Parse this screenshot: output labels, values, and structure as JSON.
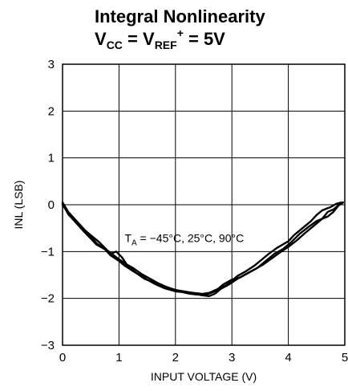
{
  "chart_data": {
    "type": "line",
    "title_line1": "Integral Nonlinearity",
    "title_line2": {
      "v1": "V",
      "v1_sub": "CC",
      "eq1": " = ",
      "v2": "V",
      "v2_sub": "REF",
      "v2_sup": "+",
      "eq2": " = 5V"
    },
    "xlabel": "INPUT VOLTAGE (V)",
    "ylabel": "INL (LSB)",
    "xlim": [
      0,
      5
    ],
    "ylim": [
      -3,
      3
    ],
    "xticks": [
      "0",
      "1",
      "2",
      "3",
      "4",
      "5"
    ],
    "yticks": [
      "3",
      "2",
      "1",
      "0",
      "−1",
      "−2",
      "−3"
    ],
    "grid": true,
    "annotation": {
      "t": "T",
      "sub": "A",
      "text": " = −45°C, 25°C, 90°C",
      "x": 1.1,
      "y": -0.8
    },
    "series": [
      {
        "color": "#000000",
        "x": [
          0.0,
          0.1,
          0.25,
          0.4,
          0.5,
          0.6,
          0.75,
          0.85,
          1.0,
          1.1,
          1.25,
          1.4,
          1.5,
          1.65,
          1.8,
          2.0,
          2.1,
          2.25,
          2.4,
          2.5,
          2.6,
          2.75,
          2.9,
          3.0,
          3.1,
          3.25,
          3.4,
          3.5,
          3.65,
          3.8,
          4.0,
          4.1,
          4.25,
          4.4,
          4.5,
          4.6,
          4.75,
          4.85,
          4.95
        ],
        "y": [
          0.05,
          -0.15,
          -0.35,
          -0.55,
          -0.68,
          -0.82,
          -0.95,
          -1.08,
          -1.2,
          -1.3,
          -1.42,
          -1.52,
          -1.6,
          -1.7,
          -1.78,
          -1.85,
          -1.86,
          -1.9,
          -1.92,
          -1.9,
          -1.88,
          -1.8,
          -1.72,
          -1.62,
          -1.52,
          -1.42,
          -1.3,
          -1.2,
          -1.05,
          -0.92,
          -0.78,
          -0.65,
          -0.5,
          -0.35,
          -0.22,
          -0.12,
          -0.05,
          0.02,
          0.05
        ]
      },
      {
        "color": "#000000",
        "x": [
          0.0,
          0.1,
          0.25,
          0.4,
          0.5,
          0.6,
          0.75,
          0.85,
          0.95,
          1.05,
          1.15,
          1.3,
          1.45,
          1.6,
          1.8,
          2.0,
          2.15,
          2.3,
          2.45,
          2.55,
          2.7,
          2.85,
          3.0,
          3.15,
          3.3,
          3.45,
          3.6,
          3.75,
          3.9,
          4.05,
          4.2,
          4.35,
          4.5,
          4.6,
          4.7,
          4.8,
          4.9,
          4.97
        ],
        "y": [
          0.02,
          -0.2,
          -0.4,
          -0.6,
          -0.72,
          -0.85,
          -0.95,
          -1.05,
          -1.0,
          -1.12,
          -1.3,
          -1.45,
          -1.58,
          -1.65,
          -1.75,
          -1.82,
          -1.86,
          -1.88,
          -1.9,
          -1.92,
          -1.85,
          -1.7,
          -1.6,
          -1.55,
          -1.45,
          -1.35,
          -1.2,
          -1.05,
          -0.95,
          -0.8,
          -0.62,
          -0.48,
          -0.35,
          -0.3,
          -0.25,
          -0.15,
          0.0,
          0.05
        ]
      },
      {
        "color": "#000000",
        "x": [
          0.0,
          0.1,
          0.2,
          0.35,
          0.5,
          0.65,
          0.8,
          0.95,
          1.1,
          1.25,
          1.4,
          1.55,
          1.7,
          1.85,
          2.0,
          2.15,
          2.3,
          2.45,
          2.6,
          2.7,
          2.8,
          2.95,
          3.1,
          3.25,
          3.4,
          3.55,
          3.7,
          3.85,
          4.0,
          4.15,
          4.3,
          4.45,
          4.6,
          4.7,
          4.8,
          4.88,
          4.95
        ],
        "y": [
          0.0,
          -0.18,
          -0.32,
          -0.5,
          -0.65,
          -0.8,
          -0.98,
          -1.12,
          -1.25,
          -1.35,
          -1.48,
          -1.58,
          -1.68,
          -1.76,
          -1.82,
          -1.85,
          -1.88,
          -1.93,
          -1.95,
          -1.9,
          -1.8,
          -1.7,
          -1.58,
          -1.48,
          -1.38,
          -1.28,
          -1.15,
          -1.02,
          -0.9,
          -0.76,
          -0.6,
          -0.45,
          -0.3,
          -0.15,
          -0.1,
          -0.02,
          0.03
        ]
      }
    ]
  }
}
